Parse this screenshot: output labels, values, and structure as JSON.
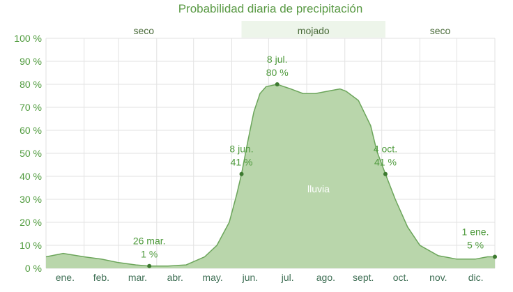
{
  "chart_data": {
    "type": "area",
    "title": "Probabilidad diaria de precipitación",
    "series_label": "lluvia",
    "y_ticks": [
      "0 %",
      "10 %",
      "20 %",
      "30 %",
      "40 %",
      "50 %",
      "60 %",
      "70 %",
      "80 %",
      "90 %",
      "100 %"
    ],
    "ylim": [
      0,
      100
    ],
    "x_tick_labels": [
      "ene.",
      "feb.",
      "mar.",
      "abr.",
      "may.",
      "jun.",
      "jul.",
      "ago.",
      "sept.",
      "oct.",
      "nov.",
      "dic."
    ],
    "xlim_day_of_year": [
      1,
      366
    ],
    "grid": true,
    "colors": {
      "fill": "#b9d6ab",
      "line": "#6ba55a",
      "text": "#4e9a3c",
      "band": "#edf5ea"
    },
    "seasons": [
      {
        "label": "seco",
        "start_day": 1,
        "end_day": 160
      },
      {
        "label": "mojado",
        "start_day": 160,
        "end_day": 277
      },
      {
        "label": "seco",
        "start_day": 277,
        "end_day": 366
      }
    ],
    "x": [
      1,
      15,
      32,
      46,
      60,
      74,
      85,
      100,
      115,
      130,
      140,
      150,
      156,
      160,
      165,
      170,
      175,
      180,
      189,
      200,
      210,
      220,
      230,
      240,
      245,
      255,
      265,
      270,
      277,
      285,
      295,
      305,
      320,
      335,
      350,
      360,
      366
    ],
    "values": [
      5,
      6.5,
      5,
      4,
      2.5,
      1.5,
      1,
      1,
      1.5,
      5,
      10,
      20,
      32,
      41,
      55,
      68,
      76,
      79,
      80,
      78,
      76,
      76,
      77,
      78,
      77,
      73,
      62,
      51,
      41,
      30,
      18,
      10,
      5.5,
      4,
      4,
      5,
      5
    ],
    "annotations": [
      {
        "line1": "26 mar.",
        "line2": "1 %",
        "day": 85,
        "value": 1
      },
      {
        "line1": "8 jun.",
        "line2": "41 %",
        "day": 160,
        "value": 41
      },
      {
        "line1": "8 jul.",
        "line2": "80 %",
        "day": 189,
        "value": 80
      },
      {
        "line1": "4 oct.",
        "line2": "41 %",
        "day": 277,
        "value": 41
      },
      {
        "line1": "1 ene.",
        "line2": "5 %",
        "day": 366,
        "value": 5
      }
    ]
  }
}
